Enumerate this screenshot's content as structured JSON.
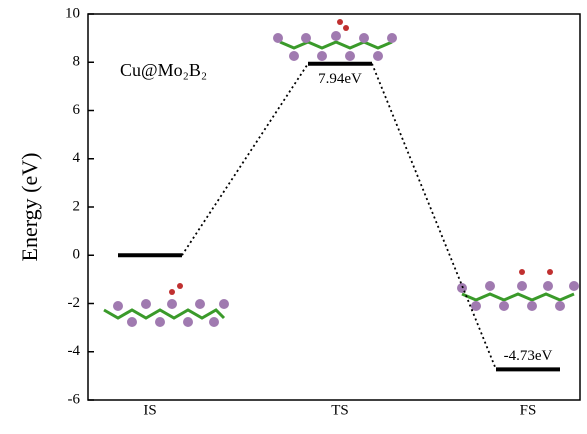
{
  "chart_data": {
    "type": "energy-profile",
    "ylabel": "Energy (eV)",
    "annotation": "Cu@Mo₂B₂",
    "categories": [
      "IS",
      "TS",
      "FS"
    ],
    "values": [
      0,
      7.94,
      -4.73
    ],
    "value_labels": [
      null,
      "7.94eV",
      "-4.73eV"
    ],
    "color": "#000000",
    "ylim": [
      -6,
      10
    ],
    "yticks": [
      -6,
      -4,
      -2,
      0,
      2,
      4,
      6,
      8,
      10
    ]
  }
}
